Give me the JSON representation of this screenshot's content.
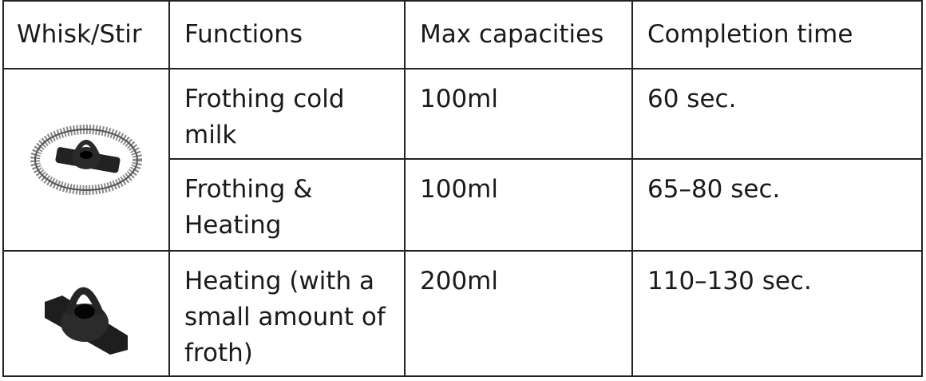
{
  "headers": [
    "Whisk/Stir",
    "Functions",
    "Max capacities",
    "Completion time"
  ],
  "rows": [
    {
      "image": "whisk-spring-icon",
      "function": "Frothing cold milk",
      "capacity": "100ml",
      "time": "60 sec."
    },
    {
      "function": "Frothing & Heating",
      "capacity": "100ml",
      "time": "65–80 sec."
    },
    {
      "image": "stirrer-icon",
      "function": "Heating (with a small amount of froth)",
      "capacity": "200ml",
      "time": "110–130 sec."
    }
  ]
}
